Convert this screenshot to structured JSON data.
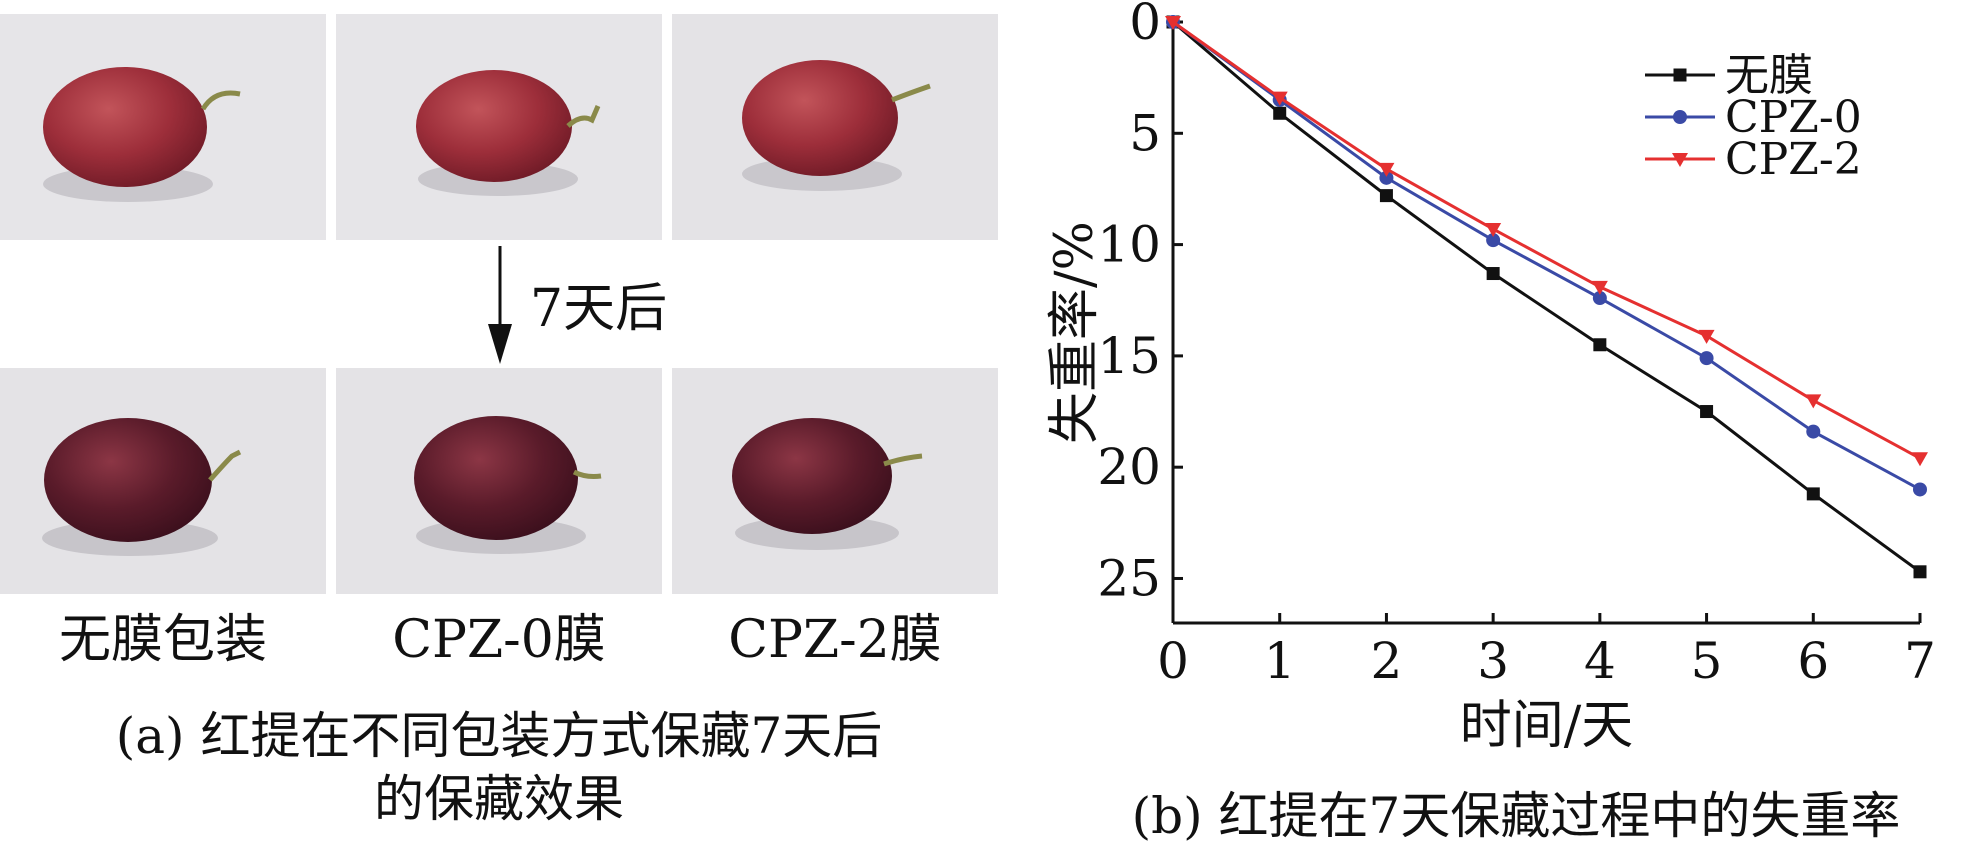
{
  "panel_a": {
    "arrow_label": "7天后",
    "labels": [
      "无膜包装",
      "CPZ-0膜",
      "CPZ-2膜"
    ],
    "caption_line1": "(a) 红提在不同包装方式保藏7天后",
    "caption_line2": "的保藏效果"
  },
  "panel_b": {
    "caption": "(b) 红提在7天保藏过程中的失重率"
  },
  "chart_data": {
    "type": "line",
    "title": "",
    "xlabel": "时间/天",
    "ylabel": "失重率/%",
    "xlim": [
      0,
      7
    ],
    "ylim": [
      0,
      27
    ],
    "y_inverted": true,
    "x_ticks": [
      0,
      1,
      2,
      3,
      4,
      5,
      6,
      7
    ],
    "y_ticks": [
      0,
      5,
      10,
      15,
      20,
      25
    ],
    "grid": false,
    "legend_position": "top-right",
    "x": [
      0,
      1,
      2,
      3,
      4,
      5,
      6,
      7
    ],
    "series": [
      {
        "name": "无膜",
        "color": "#111111",
        "marker": "square",
        "values": [
          0,
          4.1,
          7.8,
          11.3,
          14.5,
          17.5,
          21.2,
          24.7
        ]
      },
      {
        "name": "CPZ-0",
        "color": "#3a4aa6",
        "marker": "circle",
        "values": [
          0,
          3.5,
          7.0,
          9.8,
          12.4,
          15.1,
          18.4,
          21.0
        ]
      },
      {
        "name": "CPZ-2",
        "color": "#e53030",
        "marker": "triangle-down",
        "values": [
          0,
          3.4,
          6.6,
          9.3,
          11.9,
          14.1,
          17.0,
          19.6
        ]
      }
    ]
  }
}
